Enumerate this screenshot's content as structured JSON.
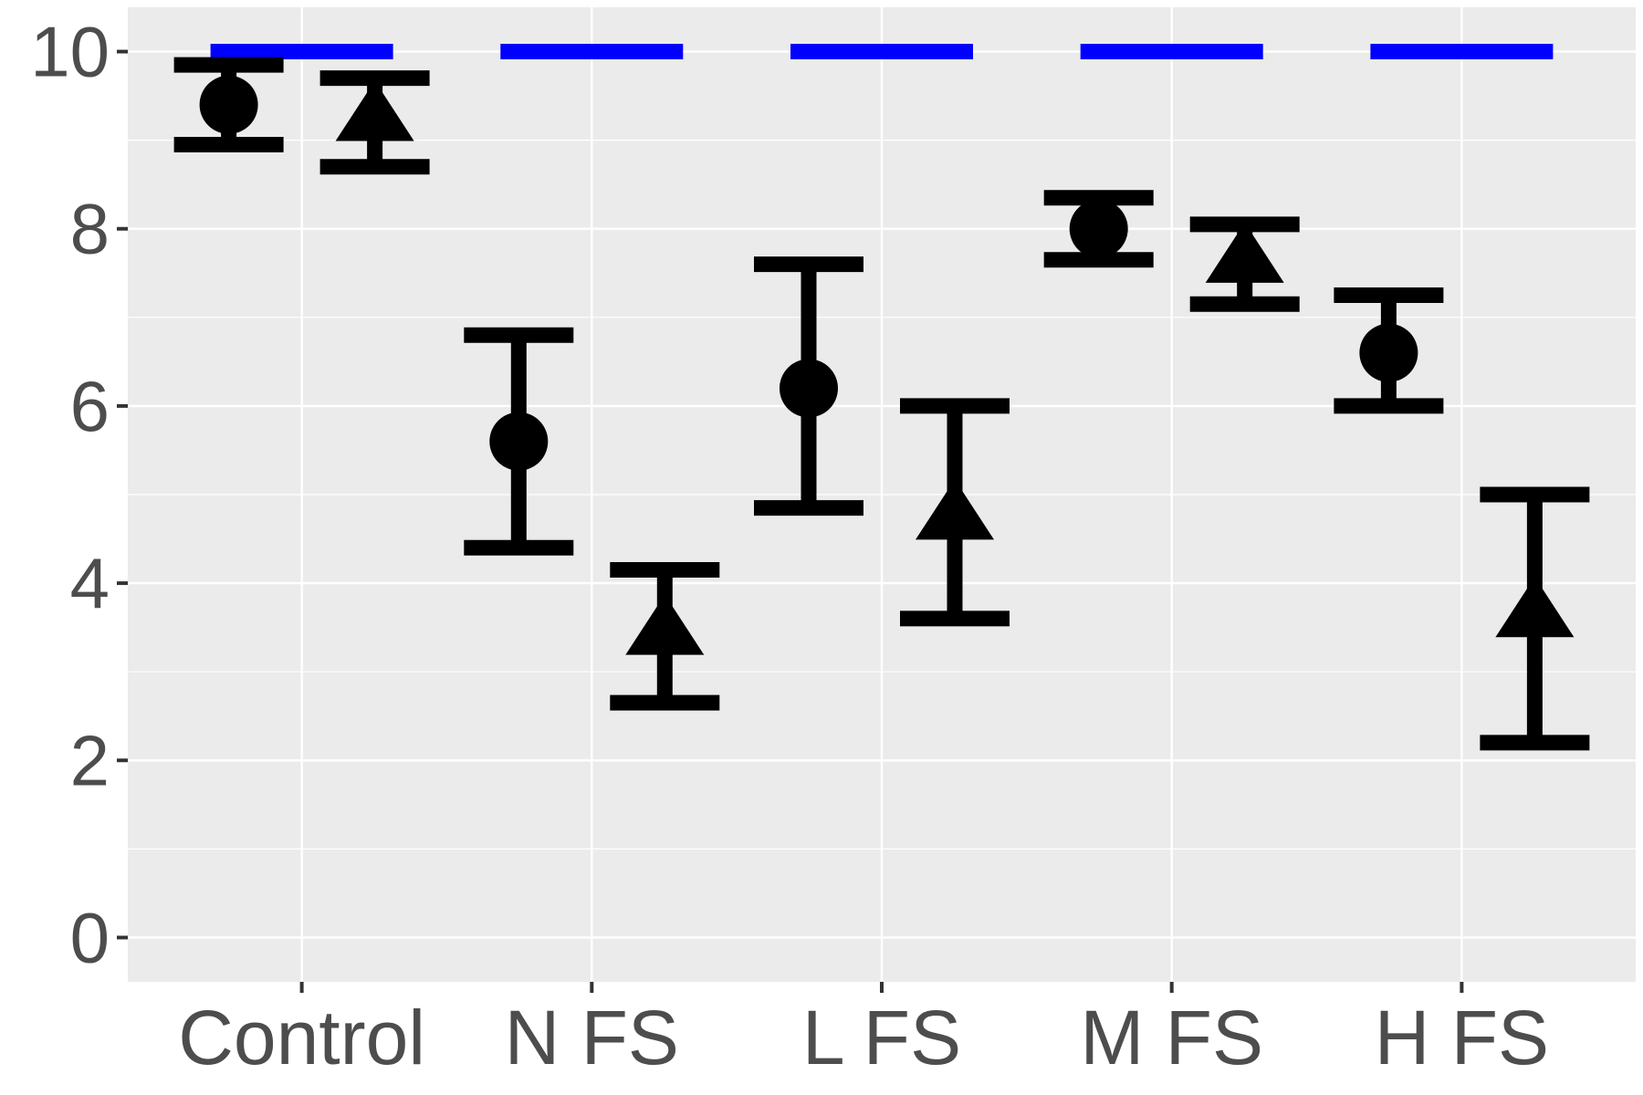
{
  "chart_data": {
    "type": "scatter",
    "categories": [
      "Control",
      "N FS",
      "L FS",
      "M FS",
      "H FS"
    ],
    "y_ticks": [
      "0",
      "2",
      "4",
      "6",
      "8",
      "10"
    ],
    "ylim": [
      -0.5,
      10.5
    ],
    "grid": true,
    "reference_value": 10,
    "series": [
      {
        "marker": "circle",
        "points": [
          {
            "category": "Control",
            "y": 9.4,
            "ymin": 8.95,
            "ymax": 9.85
          },
          {
            "category": "N FS",
            "y": 5.6,
            "ymin": 4.4,
            "ymax": 6.8
          },
          {
            "category": "L FS",
            "y": 6.2,
            "ymin": 4.85,
            "ymax": 7.6
          },
          {
            "category": "M FS",
            "y": 8.0,
            "ymin": 7.65,
            "ymax": 8.35
          },
          {
            "category": "H FS",
            "y": 6.6,
            "ymin": 6.0,
            "ymax": 7.25
          }
        ]
      },
      {
        "marker": "triangle",
        "points": [
          {
            "category": "Control",
            "y": 9.3,
            "ymin": 8.7,
            "ymax": 9.7
          },
          {
            "category": "N FS",
            "y": 3.5,
            "ymin": 2.65,
            "ymax": 4.15
          },
          {
            "category": "L FS",
            "y": 4.8,
            "ymin": 3.6,
            "ymax": 6.0
          },
          {
            "category": "M FS",
            "y": 7.7,
            "ymin": 7.15,
            "ymax": 8.05
          },
          {
            "category": "H FS",
            "y": 3.7,
            "ymin": 2.2,
            "ymax": 5.0
          }
        ]
      }
    ],
    "colors": {
      "panel": "#ebebeb",
      "grid": "#ffffff",
      "marks": "#000000",
      "reference": "#0000ff",
      "tick_text": "#4d4d4d",
      "tick_marks": "#333333"
    }
  }
}
